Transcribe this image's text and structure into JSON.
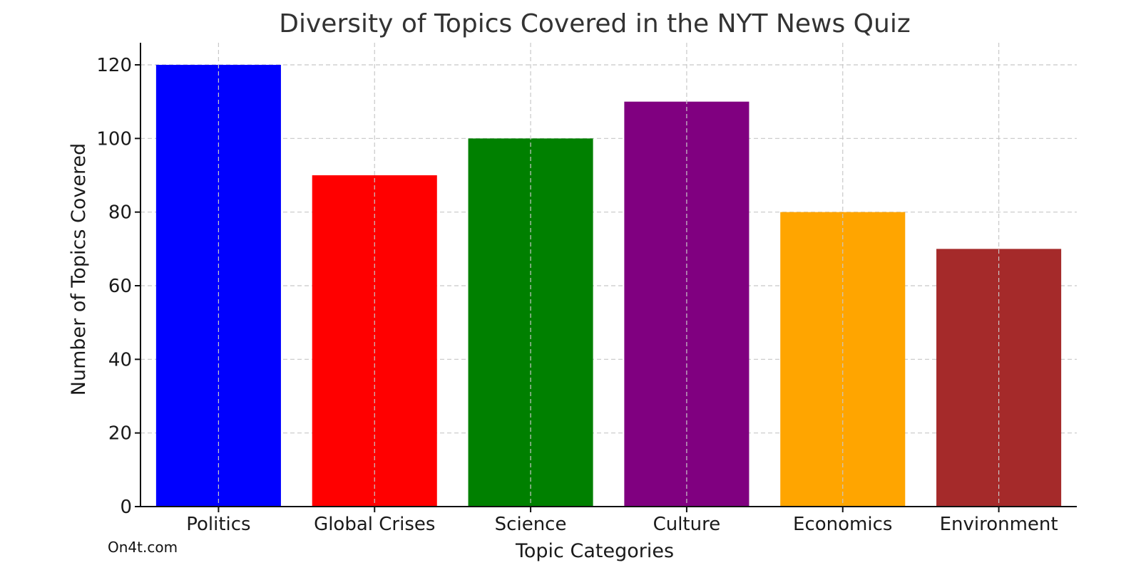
{
  "chart_data": {
    "type": "bar",
    "title": "Diversity of Topics Covered in the NYT News Quiz",
    "xlabel": "Topic Categories",
    "ylabel": "Number of Topics Covered",
    "categories": [
      "Politics",
      "Global Crises",
      "Science",
      "Culture",
      "Economics",
      "Environment"
    ],
    "values": [
      120,
      90,
      100,
      110,
      80,
      70
    ],
    "colors": [
      "#0000ff",
      "#ff0000",
      "#008000",
      "#800080",
      "#ffa500",
      "#a52a2a"
    ],
    "ylim": [
      0,
      126
    ],
    "yticks": [
      0,
      20,
      40,
      60,
      80,
      100,
      120
    ],
    "grid": true
  },
  "watermark": "On4t.com"
}
